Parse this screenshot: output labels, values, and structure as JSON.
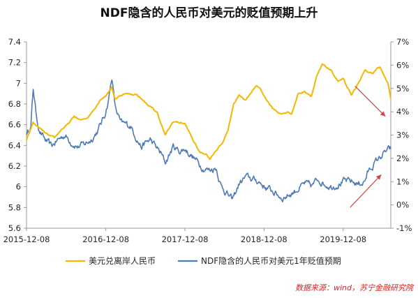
{
  "chart_data": {
    "type": "line",
    "title": "NDF隐含的人民币对美元的贬值预期上升",
    "x_tick_labels": [
      "2015-12-08",
      "2016-12-08",
      "2017-12-08",
      "2018-12-08",
      "2019-12-08"
    ],
    "x_range": [
      "2015-12-08",
      "2020-07-15"
    ],
    "y_left": {
      "ylim": [
        5.6,
        7.4
      ],
      "tick_labels": [
        "7.4",
        "7.2",
        "7",
        "6.8",
        "6.6",
        "6.4",
        "6.2",
        "6",
        "5.8",
        "5.6"
      ]
    },
    "y_right": {
      "ylim": [
        -1,
        7
      ],
      "tick_labels": [
        "7%",
        "6%",
        "5%",
        "4%",
        "3%",
        "2%",
        "1%",
        "0%",
        "-1%"
      ]
    },
    "grid": false,
    "legend_position": "bottom",
    "series": [
      {
        "name": "美元兑离岸人民币",
        "axis": "left",
        "color": "#f5b800",
        "points": [
          [
            "2015-12-08",
            6.45
          ],
          [
            "2016-01-07",
            6.62
          ],
          [
            "2016-02-15",
            6.55
          ],
          [
            "2016-03-15",
            6.5
          ],
          [
            "2016-04-15",
            6.47
          ],
          [
            "2016-05-15",
            6.55
          ],
          [
            "2016-06-15",
            6.6
          ],
          [
            "2016-07-15",
            6.68
          ],
          [
            "2016-08-15",
            6.64
          ],
          [
            "2016-09-15",
            6.67
          ],
          [
            "2016-10-15",
            6.75
          ],
          [
            "2016-11-15",
            6.85
          ],
          [
            "2016-12-08",
            6.88
          ],
          [
            "2017-01-03",
            6.96
          ],
          [
            "2017-01-20",
            6.85
          ],
          [
            "2017-03-01",
            6.9
          ],
          [
            "2017-05-01",
            6.89
          ],
          [
            "2017-06-15",
            6.8
          ],
          [
            "2017-08-01",
            6.72
          ],
          [
            "2017-09-08",
            6.5
          ],
          [
            "2017-10-15",
            6.63
          ],
          [
            "2017-11-15",
            6.62
          ],
          [
            "2017-12-08",
            6.61
          ],
          [
            "2018-01-15",
            6.45
          ],
          [
            "2018-02-15",
            6.33
          ],
          [
            "2018-03-15",
            6.32
          ],
          [
            "2018-04-02",
            6.27
          ],
          [
            "2018-04-25",
            6.34
          ],
          [
            "2018-05-30",
            6.42
          ],
          [
            "2018-06-25",
            6.55
          ],
          [
            "2018-07-20",
            6.8
          ],
          [
            "2018-08-15",
            6.88
          ],
          [
            "2018-09-15",
            6.84
          ],
          [
            "2018-10-15",
            6.93
          ],
          [
            "2018-11-01",
            6.97
          ],
          [
            "2018-11-20",
            6.95
          ],
          [
            "2018-12-08",
            6.88
          ],
          [
            "2019-01-15",
            6.76
          ],
          [
            "2019-02-25",
            6.7
          ],
          [
            "2019-03-25",
            6.72
          ],
          [
            "2019-04-15",
            6.71
          ],
          [
            "2019-05-15",
            6.9
          ],
          [
            "2019-06-15",
            6.92
          ],
          [
            "2019-07-15",
            6.88
          ],
          [
            "2019-08-06",
            7.05
          ],
          [
            "2019-09-03",
            7.18
          ],
          [
            "2019-10-10",
            7.13
          ],
          [
            "2019-11-15",
            7.02
          ],
          [
            "2019-12-08",
            7.04
          ],
          [
            "2020-01-15",
            6.88
          ],
          [
            "2020-02-10",
            6.98
          ],
          [
            "2020-03-20",
            7.12
          ],
          [
            "2020-04-20",
            7.1
          ],
          [
            "2020-05-27",
            7.16
          ],
          [
            "2020-06-15",
            7.08
          ],
          [
            "2020-07-01",
            7.0
          ],
          [
            "2020-07-15",
            6.85
          ]
        ]
      },
      {
        "name": "NDF隐含的人民币对美元1年贬值预期",
        "axis": "right",
        "color": "#4e7ab8",
        "points": [
          [
            "2015-12-08",
            3.0
          ],
          [
            "2015-12-28",
            3.4
          ],
          [
            "2016-01-08",
            5.0
          ],
          [
            "2016-01-20",
            4.0
          ],
          [
            "2016-02-05",
            3.2
          ],
          [
            "2016-03-01",
            2.8
          ],
          [
            "2016-04-01",
            2.5
          ],
          [
            "2016-05-01",
            2.8
          ],
          [
            "2016-06-01",
            3.0
          ],
          [
            "2016-07-01",
            2.7
          ],
          [
            "2016-08-01",
            2.5
          ],
          [
            "2016-09-01",
            2.6
          ],
          [
            "2016-10-01",
            2.8
          ],
          [
            "2016-11-01",
            3.2
          ],
          [
            "2016-12-01",
            3.8
          ],
          [
            "2016-12-20",
            4.5
          ],
          [
            "2017-01-05",
            5.5
          ],
          [
            "2017-01-20",
            4.2
          ],
          [
            "2017-02-15",
            3.5
          ],
          [
            "2017-04-01",
            3.4
          ],
          [
            "2017-05-20",
            2.5
          ],
          [
            "2017-07-01",
            2.8
          ],
          [
            "2017-08-20",
            2.2
          ],
          [
            "2017-09-08",
            1.8
          ],
          [
            "2017-10-15",
            2.5
          ],
          [
            "2017-11-15",
            2.3
          ],
          [
            "2017-12-08",
            2.4
          ],
          [
            "2018-01-20",
            2.0
          ],
          [
            "2018-03-01",
            1.6
          ],
          [
            "2018-04-01",
            1.5
          ],
          [
            "2018-05-01",
            1.6
          ],
          [
            "2018-05-25",
            0.8
          ],
          [
            "2018-06-20",
            0.5
          ],
          [
            "2018-07-15",
            0.2
          ],
          [
            "2018-08-15",
            0.9
          ],
          [
            "2018-09-15",
            1.2
          ],
          [
            "2018-10-15",
            1.1
          ],
          [
            "2018-11-15",
            1.0
          ],
          [
            "2018-12-08",
            0.8
          ],
          [
            "2019-01-15",
            0.6
          ],
          [
            "2019-03-01",
            0.3
          ],
          [
            "2019-04-15",
            0.5
          ],
          [
            "2019-05-15",
            0.7
          ],
          [
            "2019-06-15",
            0.9
          ],
          [
            "2019-07-15",
            0.8
          ],
          [
            "2019-08-15",
            1.1
          ],
          [
            "2019-09-15",
            0.9
          ],
          [
            "2019-10-15",
            0.8
          ],
          [
            "2019-11-15",
            0.9
          ],
          [
            "2019-12-08",
            1.0
          ],
          [
            "2020-01-15",
            1.0
          ],
          [
            "2020-02-15",
            0.9
          ],
          [
            "2020-03-15",
            1.0
          ],
          [
            "2020-04-01",
            1.4
          ],
          [
            "2020-05-01",
            1.8
          ],
          [
            "2020-06-01",
            2.1
          ],
          [
            "2020-06-25",
            2.3
          ],
          [
            "2020-07-15",
            2.4
          ]
        ]
      }
    ],
    "annotations": [
      {
        "type": "arrow",
        "color": "#d94040",
        "from": [
          "2020-02-01",
          5.1
        ],
        "to": [
          "2020-06-20",
          3.8
        ],
        "axis": "right"
      },
      {
        "type": "arrow",
        "color": "#d94040",
        "from": [
          "2020-01-10",
          -0.1
        ],
        "to": [
          "2020-06-01",
          1.3
        ],
        "axis": "right"
      }
    ],
    "source_note": "数据来源：wind，苏宁金融研究院"
  }
}
